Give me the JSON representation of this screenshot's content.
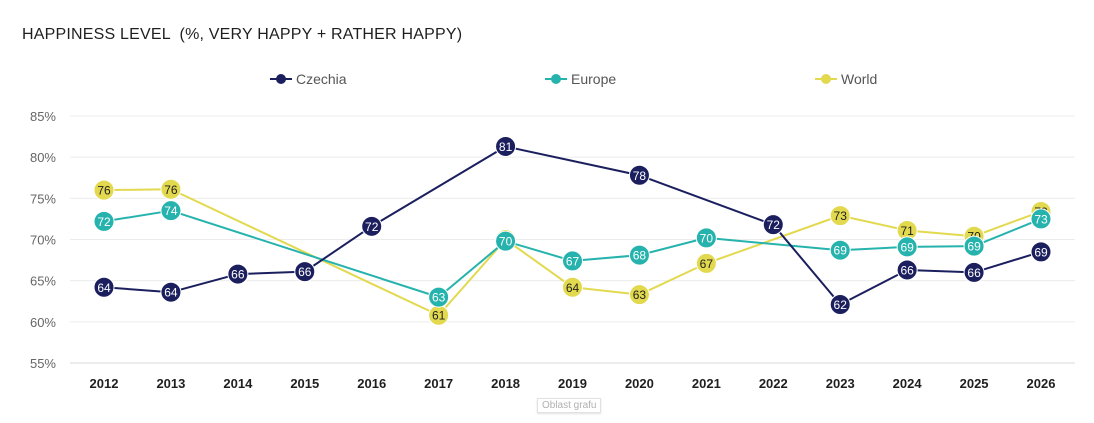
{
  "chart_data": {
    "type": "line",
    "title": "HAPPINESS LEVEL  (%, VERY HAPPY + RATHER HAPPY)",
    "xlabel": "",
    "ylabel": "",
    "categories": [
      "2012",
      "2013",
      "2014",
      "2015",
      "2016",
      "2017",
      "2018",
      "2019",
      "2020",
      "2021",
      "2022",
      "2023",
      "2024",
      "2025",
      "2026"
    ],
    "ylim": [
      55,
      85
    ],
    "yticks": [
      "55%",
      "60%",
      "65%",
      "70%",
      "75%",
      "80%",
      "85%"
    ],
    "grid": true,
    "legend_position": "top",
    "series": [
      {
        "name": "Czechia",
        "color": "#1b1f5e",
        "label_color": "#ffffff",
        "values": [
          64.2,
          63.6,
          65.8,
          66.1,
          71.6,
          null,
          81.3,
          null,
          77.8,
          null,
          71.8,
          62.1,
          66.3,
          66.0,
          68.5
        ],
        "labels": [
          "64",
          "64",
          "66",
          "66",
          "72",
          "",
          "81",
          "",
          "78",
          "",
          "72",
          "62",
          "66",
          "66",
          "69"
        ]
      },
      {
        "name": "Europe",
        "color": "#26b3ad",
        "label_color": "#ffffff",
        "values": [
          72.2,
          73.5,
          null,
          null,
          null,
          63.0,
          69.8,
          67.4,
          68.1,
          70.2,
          null,
          68.7,
          69.1,
          69.2,
          72.5
        ],
        "labels": [
          "72",
          "74",
          "",
          "",
          "",
          "63",
          "70",
          "67",
          "68",
          "70",
          "",
          "69",
          "69",
          "69",
          "73"
        ]
      },
      {
        "name": "World",
        "color": "#e2d94f",
        "label_color": "#1f1f1f",
        "values": [
          76.0,
          76.1,
          null,
          null,
          null,
          60.8,
          70.0,
          64.2,
          63.3,
          67.1,
          null,
          72.9,
          71.1,
          70.4,
          73.4
        ],
        "labels": [
          "76",
          "76",
          "",
          "",
          "",
          "61",
          "70",
          "64",
          "63",
          "67",
          "",
          "73",
          "71",
          "70",
          "73"
        ]
      }
    ]
  },
  "tooltip": "Oblast grafu"
}
